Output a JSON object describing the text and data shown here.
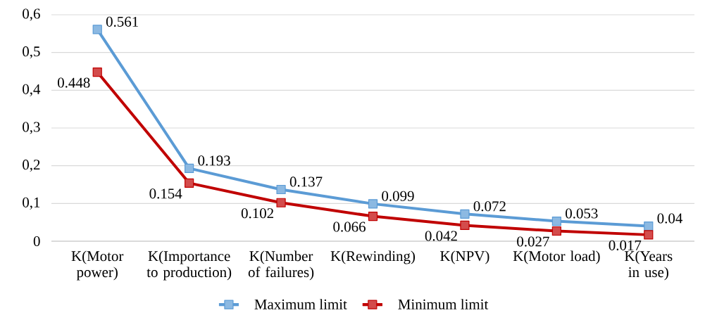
{
  "chart_data": {
    "type": "line",
    "categories": [
      "K(Motor power)",
      "K(Importance to production)",
      "K(Number of failures)",
      "K(Rewinding)",
      "K(NPV)",
      "K(Motor load)",
      "K(Years in use)"
    ],
    "series": [
      {
        "name": "Maximum limit",
        "color": "#5b9bd5",
        "values": [
          0.561,
          0.193,
          0.137,
          0.099,
          0.072,
          0.053,
          0.04
        ]
      },
      {
        "name": "Minimum limit",
        "color": "#c00000",
        "values": [
          0.448,
          0.154,
          0.102,
          0.066,
          0.042,
          0.027,
          0.017
        ]
      }
    ],
    "ylim": [
      0,
      0.6
    ],
    "yticks": [
      0,
      {
        "value": 0.1,
        "label": "0,1"
      },
      {
        "value": 0.2,
        "label": "0,2"
      },
      {
        "value": 0.3,
        "label": "0,3"
      },
      {
        "value": 0.4,
        "label": "0,4"
      },
      {
        "value": 0.5,
        "label": "0,5"
      },
      {
        "value": 0.6,
        "label": "0,6"
      }
    ],
    "grid": "y",
    "legend": "bottom",
    "marker": "square",
    "line_style": "solid",
    "data_labels": true
  }
}
